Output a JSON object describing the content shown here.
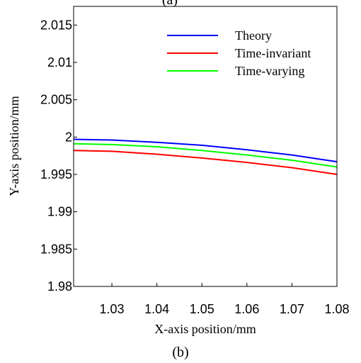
{
  "top_caption": "(a)",
  "bottom_caption": "(b)",
  "chart_data": {
    "type": "line",
    "xlabel": "X-axis position/mm",
    "ylabel": "Y-axis position/mm",
    "xlim": [
      1.0215,
      1.08
    ],
    "ylim": [
      1.98,
      2.0175
    ],
    "xticks": [
      1.03,
      1.04,
      1.05,
      1.06,
      1.07,
      1.08
    ],
    "xtick_labels": [
      "1.03",
      "1.04",
      "1.05",
      "1.06",
      "1.07",
      "1.08"
    ],
    "yticks": [
      1.98,
      1.985,
      1.99,
      1.995,
      2.0,
      2.005,
      2.01,
      2.015
    ],
    "ytick_labels": [
      "1.98",
      "1.985",
      "1.99",
      "1.995",
      "2",
      "2.005",
      "2.01",
      "2.015"
    ],
    "grid": false,
    "legend_position": "top-right",
    "x": [
      1.0215,
      1.03,
      1.04,
      1.05,
      1.06,
      1.07,
      1.08
    ],
    "series": [
      {
        "name": "Theory",
        "color": "#0000ff",
        "values": [
          1.9997,
          1.9996,
          1.9993,
          1.9989,
          1.9983,
          1.9976,
          1.9967
        ]
      },
      {
        "name": "Time-invariant",
        "color": "#ff0000",
        "values": [
          1.9982,
          1.9981,
          1.9977,
          1.9972,
          1.9966,
          1.9959,
          1.995
        ]
      },
      {
        "name": "Time-varying",
        "color": "#00ff00",
        "values": [
          1.9991,
          1.999,
          1.9987,
          1.9982,
          1.9976,
          1.9969,
          1.996
        ]
      }
    ]
  }
}
